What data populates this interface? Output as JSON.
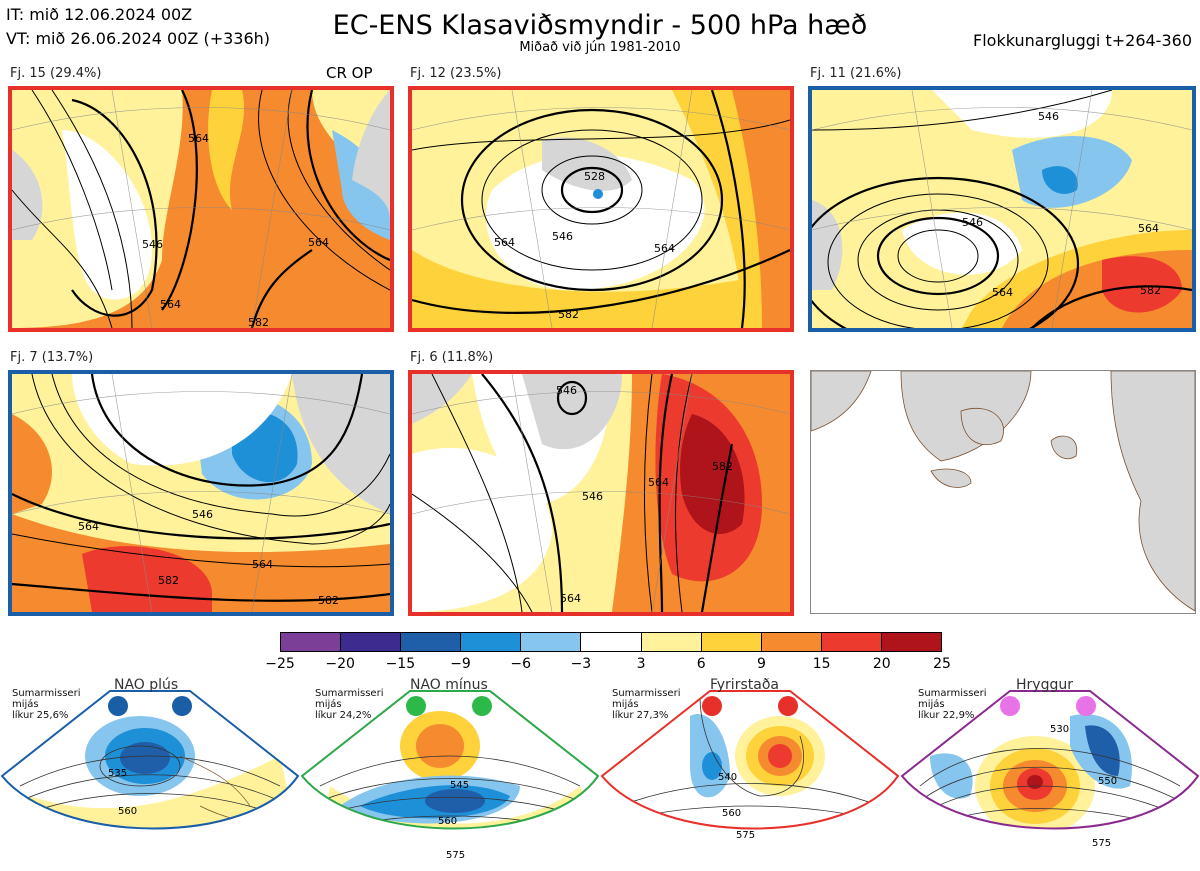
{
  "header": {
    "it_line": "IT: mið 12.06.2024 00Z",
    "vt_line": "VT: mið 26.06.2024 00Z  (+336h)",
    "title": "EC-ENS Klasaviðsmyndir - 500 hPa hæð",
    "subtitle": "Miðað við jún 1981-2010",
    "window": "Flokkunargluggi t+264-360"
  },
  "cr_op_label": "CR OP",
  "panels": [
    {
      "label": "Fj. 15 (29.4%)",
      "frame_color": "#e8302a",
      "contours": [
        "546",
        "564",
        "564",
        "564",
        "582"
      ]
    },
    {
      "label": "Fj. 12 (23.5%)",
      "frame_color": "#e8302a",
      "contours": [
        "528",
        "546",
        "564",
        "564",
        "582"
      ]
    },
    {
      "label": "Fj. 11 (21.6%)",
      "frame_color": "#1a5ea8",
      "contours": [
        "546",
        "546",
        "564",
        "564",
        "582"
      ]
    },
    {
      "label": "Fj. 7 (13.7%)",
      "frame_color": "#1a5ea8",
      "contours": [
        "546",
        "564",
        "564",
        "582",
        "582"
      ]
    },
    {
      "label": "Fj. 6 (11.8%)",
      "frame_color": "#e8302a",
      "contours": [
        "546",
        "546",
        "564",
        "564",
        "582"
      ]
    }
  ],
  "colorbar": {
    "ticks": [
      "−25",
      "−20",
      "−15",
      "−9",
      "−6",
      "−3",
      "3",
      "6",
      "9",
      "15",
      "20",
      "25"
    ],
    "colors": [
      "#7b3f98",
      "#3e2b8f",
      "#1f5ea8",
      "#1e90d8",
      "#86c5ee",
      "#ffffff",
      "#fff29a",
      "#fdd23a",
      "#f58a2e",
      "#ec3b2e",
      "#ae1419"
    ]
  },
  "regimes": [
    {
      "title": "NAO plús",
      "season": "Sumarmisseri",
      "mean": "mijás",
      "prob": "líkur 25,6%",
      "color": "#1a5ea8",
      "dot_color": "#1a5ea8",
      "contours": [
        "535",
        "560"
      ]
    },
    {
      "title": "NAO mínus",
      "season": "Sumarmisseri",
      "mean": "mijás",
      "prob": "líkur 24,2%",
      "color": "#2da84a",
      "dot_color": "#2db84a",
      "contours": [
        "545",
        "560",
        "575"
      ]
    },
    {
      "title": "Fyrirstaða",
      "season": "Sumarmisseri",
      "mean": "mijás",
      "prob": "líkur 27,3%",
      "color": "#e8302a",
      "dot_color": "#e8302a",
      "contours": [
        "540",
        "560",
        "575"
      ]
    },
    {
      "title": "Hryggur",
      "season": "Sumarmisseri",
      "mean": "mijás",
      "prob": "líkur 22,9%",
      "color": "#8a2a8f",
      "dot_color": "#e872e8",
      "contours": [
        "530",
        "550",
        "575"
      ]
    }
  ]
}
